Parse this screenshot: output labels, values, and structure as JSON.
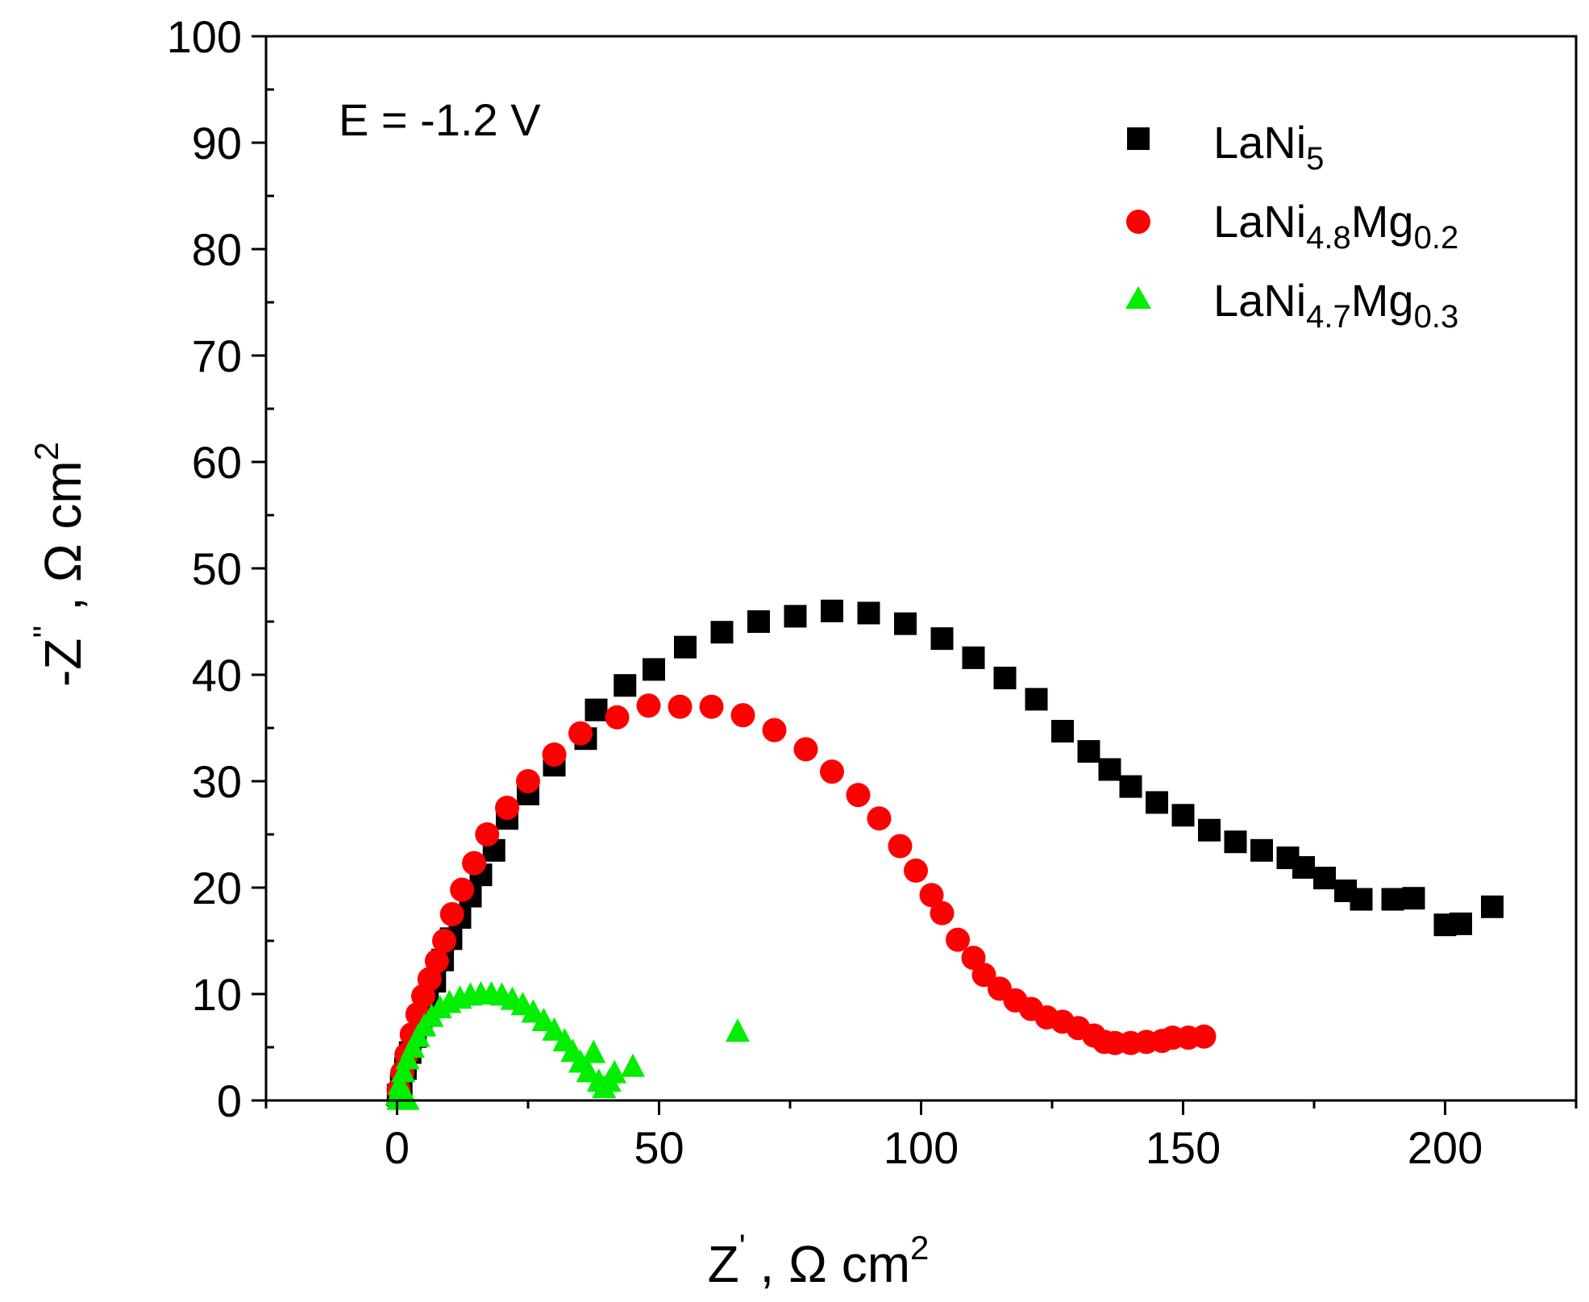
{
  "chart_data": {
    "type": "scatter",
    "annotation": "E = -1.2 V",
    "x_axis": {
      "label_main": "Z",
      "label_prime": "'",
      "label_unit": "Ω cm",
      "label_power": "2",
      "range": [
        -25,
        225
      ],
      "ticks": [
        0,
        50,
        100,
        150,
        200
      ],
      "tick_labels": [
        "0",
        "50",
        "100",
        "150",
        "200"
      ],
      "minor_step": 25
    },
    "y_axis": {
      "label_main": "-Z",
      "label_prime": "''",
      "label_unit": "Ω cm",
      "label_power": "2",
      "range": [
        0,
        100
      ],
      "ticks": [
        0,
        10,
        20,
        30,
        40,
        50,
        60,
        70,
        80,
        90,
        100
      ],
      "tick_labels": [
        "0",
        "10",
        "20",
        "30",
        "40",
        "50",
        "60",
        "70",
        "80",
        "90",
        "100"
      ],
      "minor_step": 5
    },
    "legend": {
      "position": "top-right",
      "entries": [
        {
          "base": "LaNi",
          "sub1": "5",
          "mid": "",
          "sub2": ""
        },
        {
          "base": "LaNi",
          "sub1": "4.8",
          "mid": "Mg",
          "sub2": "0.2"
        },
        {
          "base": "LaNi",
          "sub1": "4.7",
          "mid": "Mg",
          "sub2": "0.3"
        }
      ]
    },
    "series": [
      {
        "name": "LaNi5",
        "marker": "square",
        "color": "#000000",
        "points": [
          [
            0.2,
            0.5
          ],
          [
            0.8,
            1.5
          ],
          [
            1.6,
            3
          ],
          [
            2.5,
            4.5
          ],
          [
            3.5,
            6
          ],
          [
            4.6,
            7.6
          ],
          [
            5.8,
            9.4
          ],
          [
            7.2,
            11.2
          ],
          [
            8.7,
            13.2
          ],
          [
            10.3,
            15.2
          ],
          [
            12,
            17.2
          ],
          [
            14,
            19.2
          ],
          [
            16,
            21.2
          ],
          [
            18.5,
            23.5
          ],
          [
            21,
            26.5
          ],
          [
            25,
            28.8
          ],
          [
            30,
            31.5
          ],
          [
            36,
            34
          ],
          [
            38,
            36.7
          ],
          [
            43.5,
            39
          ],
          [
            49,
            40.5
          ],
          [
            55,
            42.6
          ],
          [
            62,
            44
          ],
          [
            69,
            45
          ],
          [
            76,
            45.5
          ],
          [
            83,
            46
          ],
          [
            90,
            45.8
          ],
          [
            97,
            44.8
          ],
          [
            104,
            43.4
          ],
          [
            110,
            41.6
          ],
          [
            116,
            39.7
          ],
          [
            122,
            37.7
          ],
          [
            127,
            34.7
          ],
          [
            132,
            32.8
          ],
          [
            136,
            31.1
          ],
          [
            140,
            29.5
          ],
          [
            145,
            28
          ],
          [
            150,
            26.8
          ],
          [
            155,
            25.4
          ],
          [
            160,
            24.3
          ],
          [
            165,
            23.5
          ],
          [
            170,
            22.8
          ],
          [
            173,
            21.9
          ],
          [
            177,
            20.9
          ],
          [
            181,
            19.7
          ],
          [
            184,
            18.9
          ],
          [
            190,
            18.9
          ],
          [
            194,
            19
          ],
          [
            200,
            16.5
          ],
          [
            203,
            16.6
          ],
          [
            209,
            18.2
          ]
        ]
      },
      {
        "name": "LaNi4.8Mg0.2",
        "marker": "circle",
        "color": "#ff0000",
        "points": [
          [
            0.3,
            1
          ],
          [
            1,
            2.6
          ],
          [
            1.8,
            4.3
          ],
          [
            2.8,
            6.2
          ],
          [
            3.9,
            8.1
          ],
          [
            5,
            9.8
          ],
          [
            6.2,
            11.4
          ],
          [
            7.6,
            13.1
          ],
          [
            9,
            15
          ],
          [
            10.5,
            17.5
          ],
          [
            12.4,
            19.8
          ],
          [
            14.7,
            22.3
          ],
          [
            17.2,
            25
          ],
          [
            21,
            27.5
          ],
          [
            25,
            30
          ],
          [
            30,
            32.5
          ],
          [
            35,
            34.5
          ],
          [
            42,
            36
          ],
          [
            48,
            37.1
          ],
          [
            54,
            37
          ],
          [
            60,
            37
          ],
          [
            66,
            36.2
          ],
          [
            72,
            34.8
          ],
          [
            78,
            33
          ],
          [
            83,
            30.9
          ],
          [
            88,
            28.7
          ],
          [
            92,
            26.5
          ],
          [
            96,
            23.9
          ],
          [
            99,
            21.6
          ],
          [
            102,
            19.3
          ],
          [
            104,
            17.6
          ],
          [
            107,
            15.1
          ],
          [
            110,
            13.4
          ],
          [
            112,
            11.8
          ],
          [
            115,
            10.5
          ],
          [
            118,
            9.4
          ],
          [
            121,
            8.6
          ],
          [
            124,
            7.8
          ],
          [
            127,
            7.4
          ],
          [
            130,
            6.8
          ],
          [
            133,
            6.1
          ],
          [
            135,
            5.5
          ],
          [
            137,
            5.4
          ],
          [
            140,
            5.4
          ],
          [
            143,
            5.5
          ],
          [
            146,
            5.6
          ],
          [
            148,
            5.9
          ],
          [
            151,
            5.9
          ],
          [
            154,
            6
          ]
        ]
      },
      {
        "name": "LaNi4.7Mg0.3",
        "marker": "triangle",
        "color": "#00ee00",
        "points": [
          [
            0,
            0.5
          ],
          [
            0.5,
            1.5
          ],
          [
            1.2,
            2.7
          ],
          [
            2,
            3.9
          ],
          [
            3,
            5
          ],
          [
            4,
            6
          ],
          [
            5.2,
            7
          ],
          [
            6.6,
            7.9
          ],
          [
            8.2,
            8.7
          ],
          [
            10,
            9.2
          ],
          [
            12,
            9.6
          ],
          [
            14,
            9.9
          ],
          [
            16,
            10
          ],
          [
            18,
            10
          ],
          [
            20,
            9.9
          ],
          [
            22,
            9.5
          ],
          [
            24,
            9
          ],
          [
            26,
            8.3
          ],
          [
            28,
            7.5
          ],
          [
            30,
            6.6
          ],
          [
            32,
            5.6
          ],
          [
            33.5,
            4.6
          ],
          [
            35,
            3.6
          ],
          [
            36.5,
            2.7
          ],
          [
            37.5,
            4.5
          ],
          [
            38.5,
            1.8
          ],
          [
            39.5,
            1.2
          ],
          [
            40.5,
            1.8
          ],
          [
            41.5,
            2.6
          ],
          [
            45,
            3.2
          ],
          [
            65,
            6.5
          ],
          [
            0.3,
            0.1
          ],
          [
            1,
            0.1
          ],
          [
            2,
            0.1
          ]
        ]
      }
    ]
  }
}
